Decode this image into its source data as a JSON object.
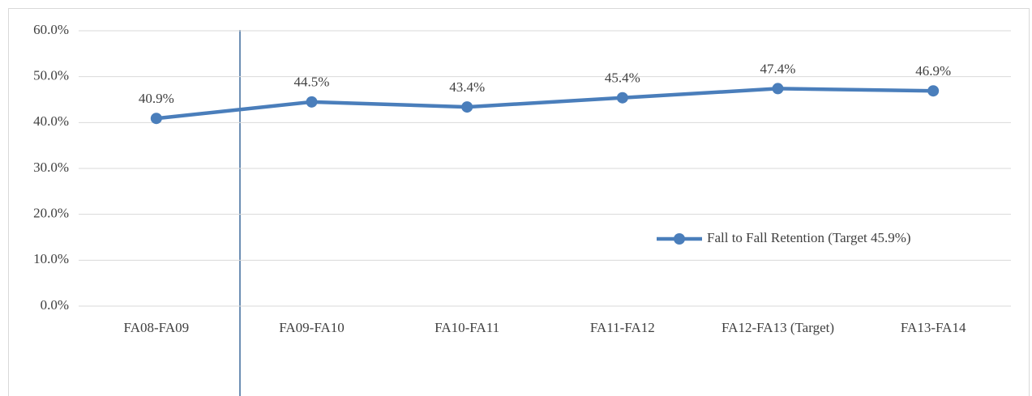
{
  "chart_data": {
    "type": "line",
    "categories": [
      "FA08-FA09",
      "FA09-FA10",
      "FA10-FA11",
      "FA11-FA12",
      "FA12-FA13 (Target)",
      "FA13-FA14"
    ],
    "series": [
      {
        "name": "Fall to Fall Retention (Target 45.9%)",
        "color": "#4a7ebb",
        "values": [
          40.9,
          44.5,
          43.4,
          45.4,
          47.4,
          46.9
        ],
        "value_labels": [
          "40.9%",
          "44.5%",
          "43.4%",
          "45.4%",
          "47.4%",
          "46.9%"
        ]
      }
    ],
    "ylim": [
      0,
      60
    ],
    "yticks": [
      {
        "value": 0,
        "label": "0.0%"
      },
      {
        "value": 10,
        "label": "10.0%"
      },
      {
        "value": 20,
        "label": "20.0%"
      },
      {
        "value": 30,
        "label": "30.0%"
      },
      {
        "value": 40,
        "label": "40.0%"
      },
      {
        "value": 50,
        "label": "50.0%"
      },
      {
        "value": 60,
        "label": "60.0%"
      }
    ],
    "grid": true,
    "legend": "right"
  }
}
